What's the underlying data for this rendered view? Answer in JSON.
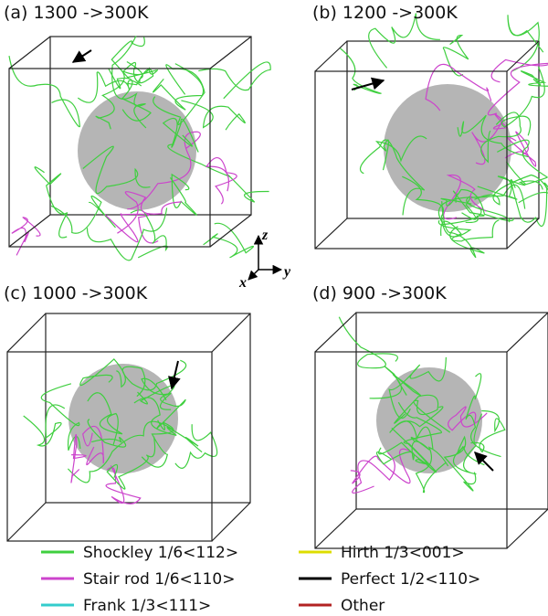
{
  "panels": [
    {
      "label": "(a) 1300 ->300K"
    },
    {
      "label": "(b) 1200 ->300K"
    },
    {
      "label": "(c) 1000 ->300K"
    },
    {
      "label": "(d) 900 ->300K"
    }
  ],
  "axes": {
    "z": "z",
    "x": "x",
    "y": "y"
  },
  "legend": [
    {
      "label": "Shockley 1/6<112>",
      "color": "#3fcf3f"
    },
    {
      "label": "Stair rod 1/6<110>",
      "color": "#cc44cc"
    },
    {
      "label": "Frank 1/3<111>",
      "color": "#33cccc"
    },
    {
      "label": "Hirth 1/3<001>",
      "color": "#dddd00"
    },
    {
      "label": "Perfect 1/2<110>",
      "color": "#000000"
    },
    {
      "label": "Other",
      "color": "#b22222"
    }
  ]
}
